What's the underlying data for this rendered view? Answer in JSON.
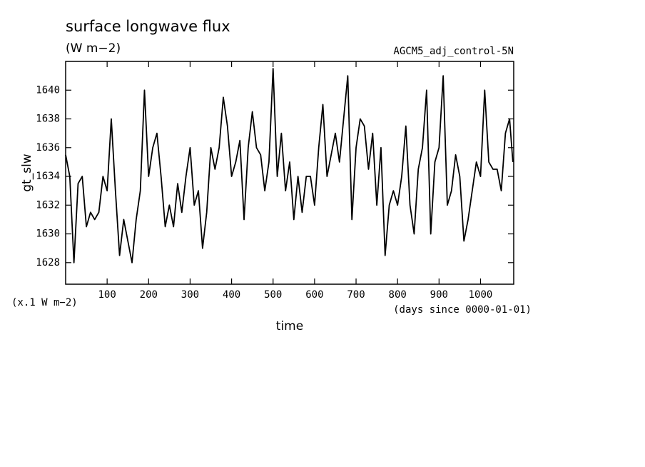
{
  "chart_data": {
    "type": "line",
    "title": "surface longwave flux",
    "subtitle": "(W m−2)",
    "annotation": "AGCM5_adj_control-5N",
    "y_label": "gt_slw",
    "x_label": "time",
    "y_unit_note": "(x.1 W m−2)",
    "x_unit_note": "(days since 0000-01-01)",
    "color": "#000000",
    "xlim": [
      0,
      1080
    ],
    "ylim": [
      1626.5,
      1642
    ],
    "xticks": [
      100,
      200,
      300,
      400,
      500,
      600,
      700,
      800,
      900,
      1000
    ],
    "yticks": [
      1628,
      1630,
      1632,
      1634,
      1636,
      1638,
      1640
    ],
    "x": [
      0,
      10,
      20,
      30,
      40,
      50,
      60,
      70,
      80,
      90,
      100,
      110,
      120,
      130,
      140,
      150,
      160,
      170,
      180,
      190,
      200,
      210,
      220,
      230,
      240,
      250,
      260,
      270,
      280,
      290,
      300,
      310,
      320,
      330,
      340,
      350,
      360,
      370,
      380,
      390,
      400,
      410,
      420,
      430,
      440,
      450,
      460,
      470,
      480,
      490,
      500,
      510,
      520,
      530,
      540,
      550,
      560,
      570,
      580,
      590,
      600,
      610,
      620,
      630,
      640,
      650,
      660,
      670,
      680,
      690,
      700,
      710,
      720,
      730,
      740,
      750,
      760,
      770,
      780,
      790,
      800,
      810,
      820,
      830,
      840,
      850,
      860,
      870,
      880,
      890,
      900,
      910,
      920,
      930,
      940,
      950,
      960,
      970,
      980,
      990,
      1000,
      1010,
      1020,
      1030,
      1040,
      1050,
      1060,
      1070,
      1078
    ],
    "values": [
      1635.5,
      1634,
      1628,
      1633.5,
      1634,
      1630.5,
      1631.5,
      1631,
      1631.5,
      1634,
      1633,
      1638,
      1633,
      1628.5,
      1631,
      1629.5,
      1628,
      1631,
      1633,
      1640,
      1634,
      1636,
      1637,
      1634,
      1630.5,
      1632,
      1630.5,
      1633.5,
      1631.5,
      1634,
      1636,
      1632,
      1633,
      1629,
      1631.5,
      1636,
      1634.5,
      1636,
      1639.5,
      1637.5,
      1634,
      1635,
      1636.5,
      1631,
      1636,
      1638.5,
      1636,
      1635.5,
      1633,
      1635,
      1641.5,
      1634,
      1637,
      1633,
      1635,
      1631,
      1634,
      1631.5,
      1634,
      1634,
      1632,
      1636,
      1639,
      1634,
      1635.5,
      1637,
      1635,
      1638,
      1641,
      1631,
      1636,
      1638,
      1637.5,
      1634.5,
      1637,
      1632,
      1636,
      1628.5,
      1632,
      1633,
      1632,
      1634,
      1637.5,
      1632,
      1630,
      1634.5,
      1636,
      1640,
      1630,
      1635,
      1636,
      1641,
      1632,
      1633,
      1635.5,
      1634,
      1629.5,
      1631,
      1633,
      1635,
      1634,
      1640,
      1635,
      1634.5,
      1634.5,
      1633,
      1637,
      1638,
      1635
    ]
  }
}
